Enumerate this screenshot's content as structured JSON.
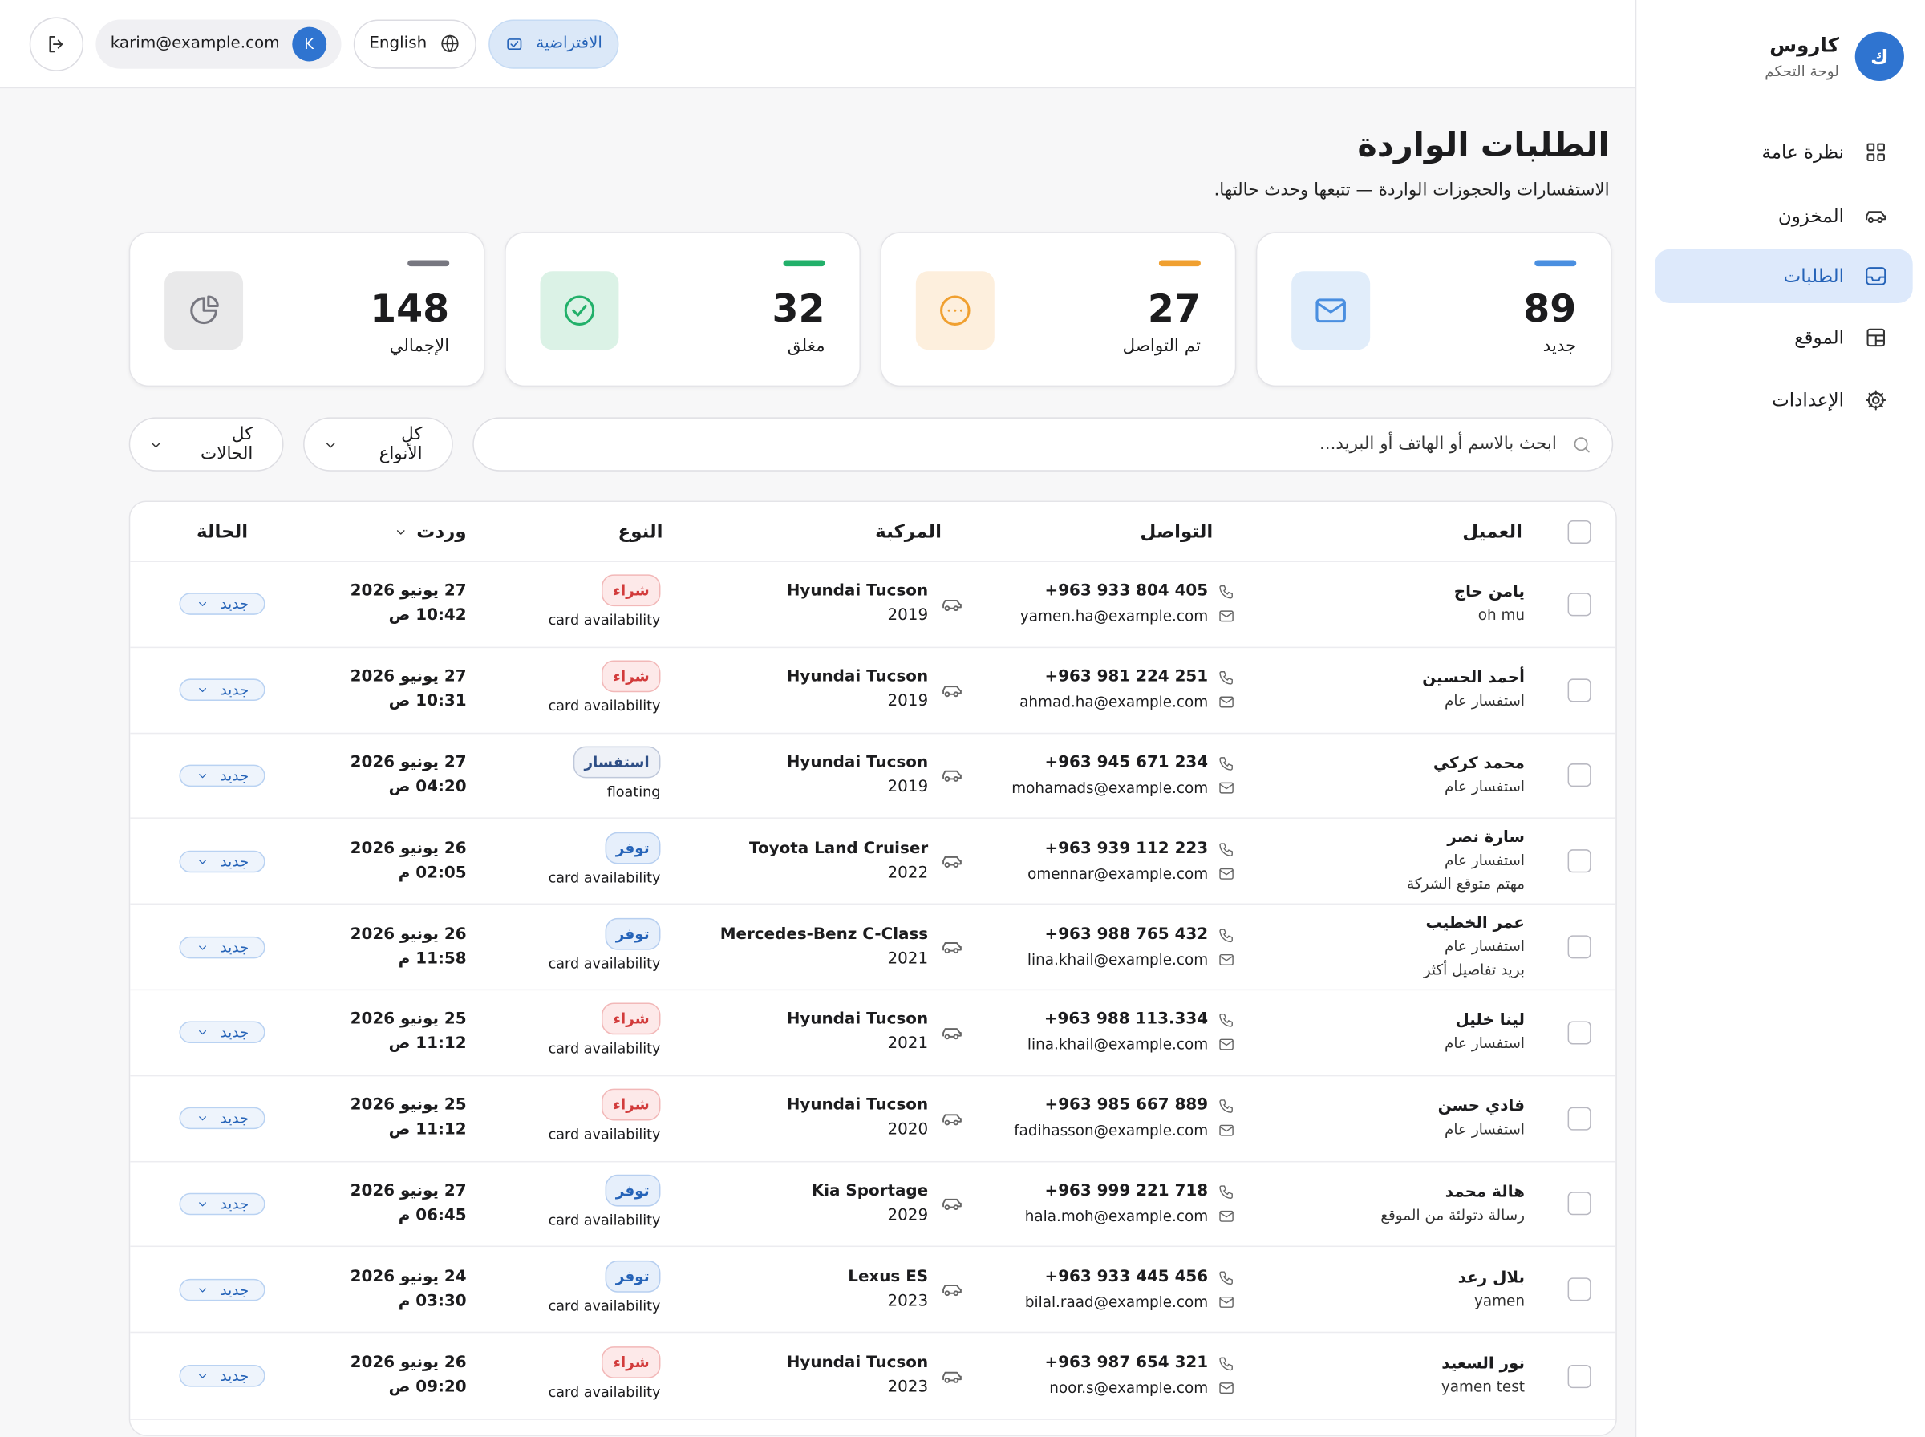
{
  "sidebar": {
    "brand_initial": "ك",
    "brand_name": "كاروس",
    "brand_sub": "لوحة التحكم",
    "nav": [
      {
        "label": "نظرة عامة",
        "icon": "grid"
      },
      {
        "label": "المخزون",
        "icon": "car"
      },
      {
        "label": "الطلبات",
        "icon": "inbox",
        "active": true
      },
      {
        "label": "الموقع",
        "icon": "layout"
      },
      {
        "label": "الإعدادات",
        "icon": "gear"
      }
    ]
  },
  "topbar": {
    "mode": "الافتراضية",
    "language": "English",
    "email": "karim@example.com",
    "avatar": "K"
  },
  "header": {
    "title": "الطلبات الواردة",
    "subtitle": "الاستفسارات والحجوزات الواردة — تتبعها وحدث حالتها."
  },
  "stats": [
    {
      "value": 89,
      "label": "جديد",
      "color": "#4a8fe0",
      "icon": "mail"
    },
    {
      "value": 27,
      "label": "تم التواصل",
      "color": "#f0a030",
      "icon": "dots"
    },
    {
      "value": 32,
      "label": "مغلق",
      "color": "#22b06a",
      "icon": "check"
    },
    {
      "value": 148,
      "label": "الإجمالي",
      "color": "#777780",
      "icon": "pie"
    }
  ],
  "filters": {
    "search": "ابحث بالاسم أو الهاتف أو البريد...",
    "type": "كل الأنواع",
    "status": "كل الحالات"
  },
  "table": {
    "headers": [
      "العميل",
      "التواصل",
      "المركبة",
      "النوع",
      "وردت",
      "الحالة"
    ],
    "rows": [
      {
        "name": "يامن حاج",
        "notes": [
          "oh mu"
        ],
        "phone": "+963 933 804 405",
        "email": "yamen.ha@example.com",
        "vehicle": "Hyundai Tucson",
        "year": 2019,
        "type": "شراء",
        "tone": "red",
        "type_sub": "card availability",
        "date": "27 يونيو 2026",
        "time": "10:42 ص",
        "status": "جديد"
      },
      {
        "name": "أحمد الحسين",
        "notes": [
          "استفسار عام"
        ],
        "phone": "+963 981 224 251",
        "email": "ahmad.ha@example.com",
        "vehicle": "Hyundai Tucson",
        "year": 2019,
        "type": "شراء",
        "tone": "red",
        "type_sub": "card availability",
        "date": "27 يونيو 2026",
        "time": "10:31 ص",
        "status": "جديد"
      },
      {
        "name": "محمد كركي",
        "notes": [
          "استفسار عام"
        ],
        "phone": "+963 945 671 234",
        "email": "mohamads@example.com",
        "vehicle": "Hyundai Tucson",
        "year": 2019,
        "type": "استفسار",
        "tone": "navy",
        "type_sub": "floating",
        "date": "27 يونيو 2026",
        "time": "04:20 ص",
        "status": "جديد"
      },
      {
        "name": "سارة نصر",
        "notes": [
          "استفسار عام",
          "مهتم متوقع الشركة"
        ],
        "phone": "+963 939 112 223",
        "email": "omennar@example.com",
        "vehicle": "Toyota Land Cruiser",
        "year": 2022,
        "type": "توفر",
        "tone": "blue",
        "type_sub": "card availability",
        "date": "26 يونيو 2026",
        "time": "02:05 م",
        "status": "جديد"
      },
      {
        "name": "عمر الخطيب",
        "notes": [
          "استفسار عام",
          "بريد تفاصيل أكثر"
        ],
        "phone": "+963 988 765 432",
        "email": "lina.khail@example.com",
        "vehicle": "Mercedes-Benz C-Class",
        "year": 2021,
        "type": "توفر",
        "tone": "blue",
        "type_sub": "card availability",
        "date": "26 يونيو 2026",
        "time": "11:58 م",
        "status": "جديد"
      },
      {
        "name": "لينا خليل",
        "notes": [
          "استفسار عام"
        ],
        "phone": "+963 988 113.334",
        "email": "lina.khail@example.com",
        "vehicle": "Hyundai Tucson",
        "year": 2021,
        "type": "شراء",
        "tone": "red",
        "type_sub": "card availability",
        "date": "25 يونيو 2026",
        "time": "11:12 ص",
        "status": "جديد"
      },
      {
        "name": "فادي حسن",
        "notes": [
          "استفسار عام"
        ],
        "phone": "+963 985 667 889",
        "email": "fadihasson@example.com",
        "vehicle": "Hyundai Tucson",
        "year": 2020,
        "type": "شراء",
        "tone": "red",
        "type_sub": "card availability",
        "date": "25 يونيو 2026",
        "time": "11:12 ص",
        "status": "جديد"
      },
      {
        "name": "هالة محمد",
        "notes": [
          "رسالة دتولئة من الموقع"
        ],
        "phone": "+963 999 221 718",
        "email": "hala.moh@example.com",
        "vehicle": "Kia Sportage",
        "year": 2029,
        "type": "توفر",
        "tone": "blue",
        "type_sub": "card availability",
        "date": "27 يونيو 2026",
        "time": "06:45 م",
        "status": "جديد"
      },
      {
        "name": "بلال رعد",
        "notes": [
          "yamen"
        ],
        "phone": "+963 933 445 456",
        "email": "bilal.raad@example.com",
        "vehicle": "Lexus ES",
        "year": 2023,
        "type": "توفر",
        "tone": "blue",
        "type_sub": "card availability",
        "date": "24 يونيو 2026",
        "time": "03:30 م",
        "status": "جديد"
      },
      {
        "name": "نور السعيد",
        "notes": [
          "yamen test"
        ],
        "phone": "+963 987 654 321",
        "email": "noor.s@example.com",
        "vehicle": "Hyundai Tucson",
        "year": 2023,
        "type": "شراء",
        "tone": "red",
        "type_sub": "card availability",
        "date": "26 يونيو 2026",
        "time": "09:20 ص",
        "status": "جديد"
      }
    ]
  }
}
